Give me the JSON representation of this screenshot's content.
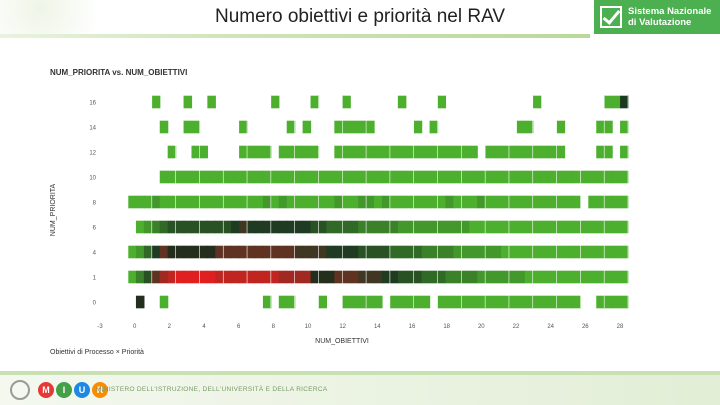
{
  "header": {
    "title": "Numero obiettivi e priorità nel RAV",
    "brand_line1": "Sistema Nazionale",
    "brand_line2": "di Valutazione"
  },
  "footer": {
    "ministry_text": "MINISTERO DELL'ISTRUZIONE, DELL'UNIVERSITÀ E DELLA RICERCA",
    "miur_letters": [
      "M",
      "I",
      "U",
      "R"
    ],
    "miur_colors": [
      "#e53935",
      "#43a047",
      "#1e88e5",
      "#fb8c00"
    ]
  },
  "colors": {
    "brand": "#4caf50",
    "cell_low": "#4caf2e",
    "cell_mid": "#1f3b22",
    "cell_high": "#e02020"
  },
  "chart_data": {
    "type": "heatmap",
    "title": "NUM_PRIORITA vs. NUM_OBIETTIVI",
    "xlabel": "NUM_OBIETTIVI",
    "ylabel": "NUM_PRIORITA",
    "x_ticks": [
      "-3",
      "0",
      "2",
      "4",
      "6",
      "8",
      "10",
      "12",
      "14",
      "16",
      "18",
      "20",
      "22",
      "24",
      "26",
      "28"
    ],
    "y_ticks": [
      "0",
      "1",
      "4",
      "6",
      "8",
      "10",
      "12",
      "14",
      "16"
    ],
    "x_range": [
      -2,
      28
    ],
    "y_range": [
      0,
      16
    ],
    "counts": {
      "16": [
        0,
        0,
        0,
        1,
        0,
        0,
        0,
        1,
        0,
        0,
        1,
        0,
        0,
        0,
        0,
        0,
        0,
        0,
        1,
        0,
        0,
        0,
        0,
        1,
        0,
        0,
        0,
        1,
        0,
        0,
        0,
        0,
        0,
        0,
        1,
        0,
        0,
        0,
        0,
        1,
        0,
        0,
        0,
        0,
        0,
        0,
        0,
        0,
        0,
        0,
        0,
        1,
        0,
        0,
        0,
        0,
        0,
        0,
        0,
        0,
        1,
        1,
        9
      ],
      "14": [
        0,
        0,
        0,
        0,
        1,
        0,
        0,
        1,
        1,
        0,
        0,
        0,
        0,
        0,
        1,
        0,
        0,
        0,
        0,
        0,
        1,
        0,
        1,
        0,
        0,
        0,
        1,
        1,
        1,
        1,
        1,
        0,
        0,
        0,
        0,
        0,
        1,
        0,
        1,
        0,
        0,
        0,
        0,
        0,
        0,
        0,
        0,
        0,
        0,
        1,
        1,
        0,
        0,
        0,
        1,
        0,
        0,
        0,
        0,
        1,
        1,
        0,
        1
      ],
      "12": [
        0,
        0,
        0,
        0,
        0,
        1,
        0,
        0,
        1,
        1,
        0,
        0,
        0,
        0,
        1,
        1,
        1,
        1,
        0,
        1,
        1,
        1,
        1,
        1,
        0,
        0,
        1,
        1,
        1,
        1,
        1,
        1,
        1,
        1,
        1,
        1,
        1,
        1,
        1,
        1,
        1,
        1,
        1,
        1,
        0,
        1,
        1,
        1,
        1,
        1,
        1,
        1,
        1,
        1,
        1,
        0,
        0,
        0,
        0,
        1,
        1,
        0,
        1
      ],
      "10": [
        0,
        0,
        0,
        0,
        1,
        1,
        1,
        1,
        1,
        1,
        1,
        1,
        1,
        1,
        1,
        1,
        1,
        1,
        1,
        1,
        1,
        1,
        1,
        1,
        1,
        1,
        1,
        1,
        1,
        1,
        1,
        1,
        1,
        1,
        1,
        1,
        1,
        1,
        1,
        1,
        1,
        1,
        1,
        1,
        1,
        1,
        1,
        1,
        1,
        1,
        1,
        1,
        1,
        1,
        1,
        1,
        1,
        1,
        1,
        1,
        1,
        1,
        1
      ],
      "8": [
        1,
        1,
        1,
        2,
        1,
        1,
        1,
        1,
        1,
        1,
        1,
        1,
        1,
        1,
        1,
        1,
        1,
        2,
        1,
        2,
        1,
        1,
        1,
        1,
        1,
        1,
        2,
        1,
        1,
        2,
        2,
        1,
        2,
        1,
        1,
        1,
        1,
        1,
        1,
        1,
        2,
        1,
        1,
        1,
        2,
        1,
        1,
        1,
        1,
        1,
        1,
        1,
        1,
        1,
        1,
        1,
        1,
        0,
        1,
        1,
        1,
        1,
        1
      ],
      "6": [
        0,
        1,
        2,
        3,
        4,
        5,
        5,
        5,
        5,
        5,
        5,
        5,
        5,
        6,
        7,
        6,
        6,
        6,
        6,
        6,
        6,
        6,
        6,
        5,
        5,
        4,
        4,
        4,
        4,
        3,
        3,
        3,
        3,
        3,
        2,
        2,
        2,
        2,
        2,
        2,
        2,
        2,
        2,
        1,
        1,
        1,
        1,
        1,
        1,
        1,
        1,
        1,
        1,
        1,
        1,
        1,
        1,
        1,
        1,
        1,
        1,
        1,
        1
      ],
      "4": [
        1,
        2,
        4,
        6,
        8,
        9,
        9,
        9,
        9,
        9,
        9,
        8,
        8,
        8,
        8,
        8,
        8,
        8,
        8,
        8,
        8,
        7,
        7,
        7,
        7,
        6,
        6,
        6,
        6,
        5,
        5,
        5,
        5,
        4,
        4,
        4,
        4,
        3,
        3,
        3,
        3,
        2,
        2,
        2,
        2,
        2,
        2,
        1,
        1,
        1,
        1,
        1,
        1,
        1,
        1,
        1,
        1,
        1,
        1,
        1,
        1,
        1,
        1
      ],
      "1": [
        1,
        3,
        5,
        8,
        10,
        11,
        12,
        12,
        12,
        12,
        12,
        11,
        11,
        11,
        11,
        11,
        11,
        11,
        11,
        10,
        10,
        10,
        10,
        9,
        9,
        9,
        8,
        8,
        8,
        7,
        7,
        7,
        6,
        6,
        5,
        5,
        5,
        4,
        4,
        4,
        3,
        3,
        3,
        3,
        2,
        2,
        2,
        2,
        2,
        2,
        1,
        1,
        1,
        1,
        1,
        1,
        1,
        1,
        1,
        1,
        1,
        1,
        1
      ],
      "0": [
        0,
        9,
        0,
        0,
        1,
        0,
        0,
        0,
        0,
        0,
        0,
        0,
        0,
        0,
        0,
        0,
        0,
        1,
        0,
        1,
        1,
        0,
        0,
        0,
        1,
        0,
        0,
        1,
        1,
        1,
        1,
        1,
        0,
        1,
        1,
        1,
        1,
        1,
        0,
        1,
        1,
        1,
        1,
        1,
        1,
        1,
        1,
        1,
        1,
        1,
        1,
        1,
        1,
        1,
        1,
        1,
        1,
        0,
        0,
        1,
        1,
        1,
        1
      ]
    },
    "legend_label": "Obiettivi di Processo × Priorità",
    "grid": false
  }
}
